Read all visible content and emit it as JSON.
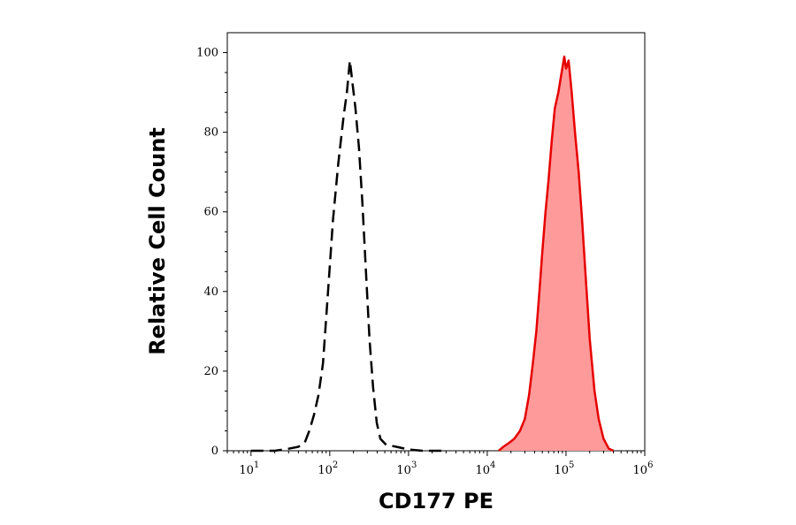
{
  "chart_data": {
    "type": "area",
    "xlabel": "CD177 PE",
    "ylabel": "Relative Cell Count",
    "x_scale": "log",
    "xlim": [
      5,
      1000000
    ],
    "ylim": [
      0,
      105
    ],
    "x_ticks": [
      {
        "value": 10,
        "base": "10",
        "exp": "1"
      },
      {
        "value": 100,
        "base": "10",
        "exp": "2"
      },
      {
        "value": 1000,
        "base": "10",
        "exp": "3"
      },
      {
        "value": 10000,
        "base": "10",
        "exp": "4"
      },
      {
        "value": 100000,
        "base": "10",
        "exp": "5"
      },
      {
        "value": 1000000,
        "base": "10",
        "exp": "6"
      }
    ],
    "y_ticks": [
      "0",
      "20",
      "40",
      "60",
      "80",
      "100"
    ],
    "grid": false,
    "series": [
      {
        "style": "dashed-outline",
        "color": "#000000",
        "points": [
          [
            10,
            0
          ],
          [
            20,
            0
          ],
          [
            30,
            0.5
          ],
          [
            40,
            1
          ],
          [
            48,
            2
          ],
          [
            55,
            5
          ],
          [
            63,
            9
          ],
          [
            72,
            14
          ],
          [
            82,
            22
          ],
          [
            95,
            40
          ],
          [
            110,
            58
          ],
          [
            128,
            72
          ],
          [
            150,
            84
          ],
          [
            165,
            90
          ],
          [
            180,
            98
          ],
          [
            195,
            92
          ],
          [
            212,
            86
          ],
          [
            235,
            76
          ],
          [
            260,
            62
          ],
          [
            290,
            44
          ],
          [
            320,
            28
          ],
          [
            355,
            16
          ],
          [
            395,
            7
          ],
          [
            440,
            3
          ],
          [
            520,
            1.5
          ],
          [
            700,
            1
          ],
          [
            1000,
            0.3
          ],
          [
            1500,
            0
          ],
          [
            3000,
            0
          ]
        ]
      },
      {
        "style": "filled",
        "color": "#e60000",
        "fill": "#ff9a9a",
        "points": [
          [
            14000,
            0
          ],
          [
            16000,
            1
          ],
          [
            19000,
            2
          ],
          [
            22000,
            3
          ],
          [
            26000,
            5
          ],
          [
            30000,
            8
          ],
          [
            34000,
            14
          ],
          [
            38000,
            22
          ],
          [
            42000,
            30
          ],
          [
            46000,
            40
          ],
          [
            50000,
            50
          ],
          [
            55000,
            60
          ],
          [
            60000,
            68
          ],
          [
            66000,
            78
          ],
          [
            72000,
            86
          ],
          [
            80000,
            90
          ],
          [
            88000,
            95
          ],
          [
            95000,
            99
          ],
          [
            100000,
            96
          ],
          [
            108000,
            98
          ],
          [
            118000,
            90
          ],
          [
            130000,
            80
          ],
          [
            145000,
            70
          ],
          [
            160000,
            58
          ],
          [
            180000,
            42
          ],
          [
            200000,
            28
          ],
          [
            230000,
            15
          ],
          [
            260000,
            8
          ],
          [
            300000,
            3
          ],
          [
            350000,
            0.5
          ],
          [
            400000,
            0
          ]
        ]
      }
    ]
  }
}
